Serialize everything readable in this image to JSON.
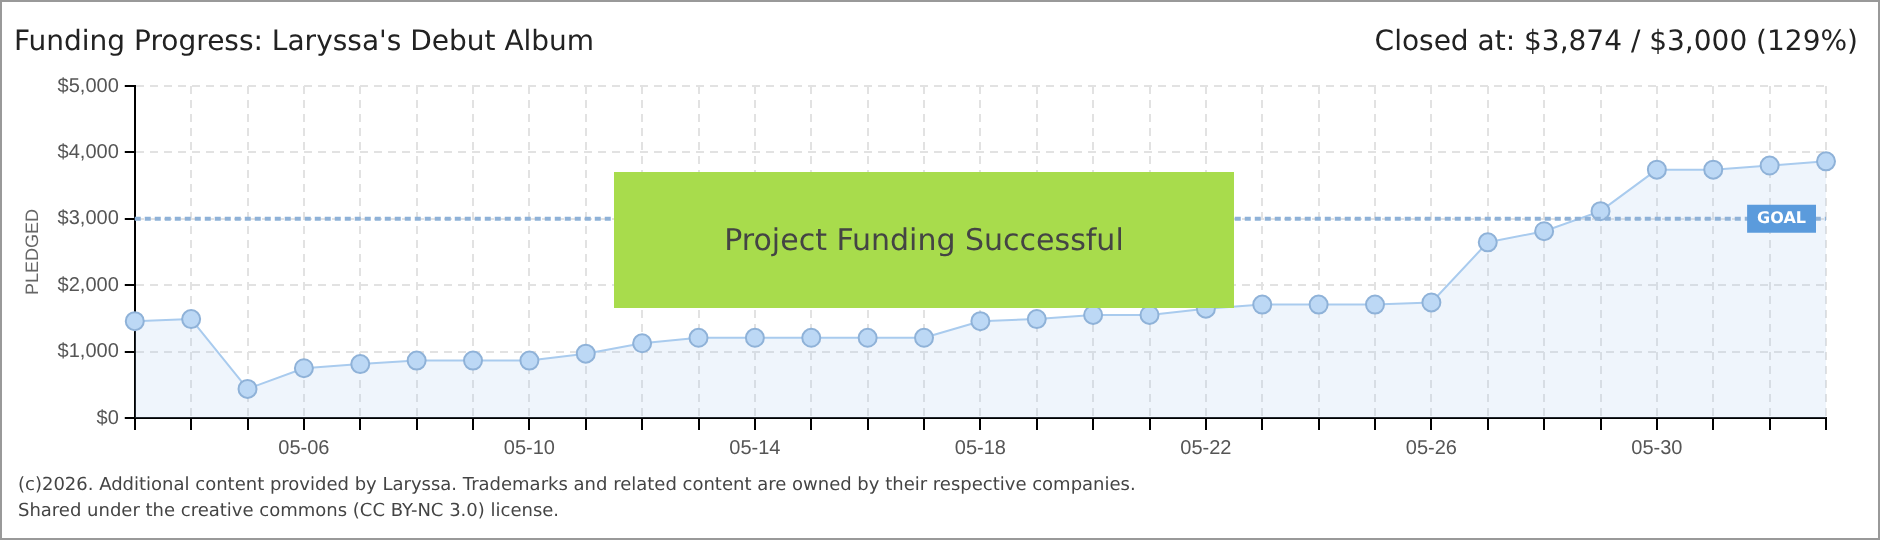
{
  "chart_data": {
    "type": "area",
    "title": "Funding Progress: Laryssa's Debut Album",
    "subtitle": "Closed at: $3,874 / $3,000 (129%)",
    "ylabel": "PLEDGED",
    "categories": [
      null,
      null,
      null,
      "05-06",
      null,
      null,
      null,
      "05-10",
      null,
      null,
      null,
      "05-14",
      null,
      null,
      null,
      "05-18",
      null,
      null,
      null,
      "05-22",
      null,
      null,
      null,
      "05-26",
      null,
      null,
      null,
      "05-30",
      null,
      null,
      null
    ],
    "series": [
      {
        "color": "#a9cbee",
        "values": [
          1458,
          1490,
          438,
          750,
          812,
          865,
          865,
          865,
          969,
          1125,
          1208,
          1208,
          1208,
          1208,
          1208,
          1458,
          1490,
          1552,
          1552,
          1646,
          1708,
          1708,
          1708,
          1740,
          2646,
          2813,
          3115,
          3740,
          3740,
          3802,
          3865
        ]
      }
    ],
    "ylim": [
      0,
      5000
    ],
    "yticks": [
      {
        "value": 0,
        "label": "$0"
      },
      {
        "value": 1000,
        "label": "$1,000"
      },
      {
        "value": 2000,
        "label": "$2,000"
      },
      {
        "value": 3000,
        "label": "$3,000"
      },
      {
        "value": 4000,
        "label": "$4,000"
      },
      {
        "value": 5000,
        "label": "$5,000"
      }
    ],
    "ref_lines": [
      {
        "axis": "y",
        "value": 3000,
        "label": "GOAL",
        "color": "#8fb2d8",
        "line_style": "dotted"
      }
    ],
    "annotations": [
      "Project Funding Successful",
      "(c)2026. Additional content provided by Laryssa. Trademarks and related content are owned by their respective companies.",
      "Shared under the creative commons (CC BY-NC 3.0) license."
    ],
    "grid": true,
    "marker": "circle",
    "legend": false
  }
}
